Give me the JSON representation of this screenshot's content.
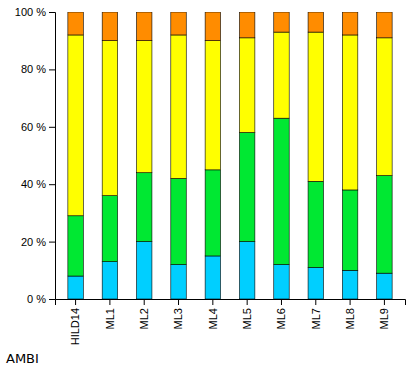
{
  "chart_data": {
    "type": "bar",
    "stacked": true,
    "xlabel": "AMBI",
    "categories": [
      "HILD14",
      "ML1",
      "ML2",
      "ML3",
      "ML4",
      "ML5",
      "ML6",
      "ML7",
      "ML8",
      "ML9"
    ],
    "series": [
      {
        "color": "#00CFFF",
        "values": [
          8,
          13,
          20,
          12,
          15,
          20,
          12,
          11,
          10,
          9
        ]
      },
      {
        "color": "#00E832",
        "values": [
          21,
          23,
          24,
          30,
          30,
          38,
          51,
          30,
          28,
          34
        ]
      },
      {
        "color": "#FFFF00",
        "values": [
          63,
          54,
          46,
          50,
          45,
          33,
          30,
          52,
          54,
          48
        ]
      },
      {
        "color": "#FF8C00",
        "values": [
          8,
          10,
          10,
          8,
          10,
          9,
          7,
          7,
          8,
          9
        ]
      }
    ],
    "ylim": [
      0,
      100
    ],
    "yticks": [
      {
        "value": 0,
        "label": "0 %"
      },
      {
        "value": 20,
        "label": "20 %"
      },
      {
        "value": 40,
        "label": "40 %"
      },
      {
        "value": 60,
        "label": "60 %"
      },
      {
        "value": 80,
        "label": "80 %"
      },
      {
        "value": 100,
        "label": "100 %"
      }
    ],
    "grid": false
  }
}
